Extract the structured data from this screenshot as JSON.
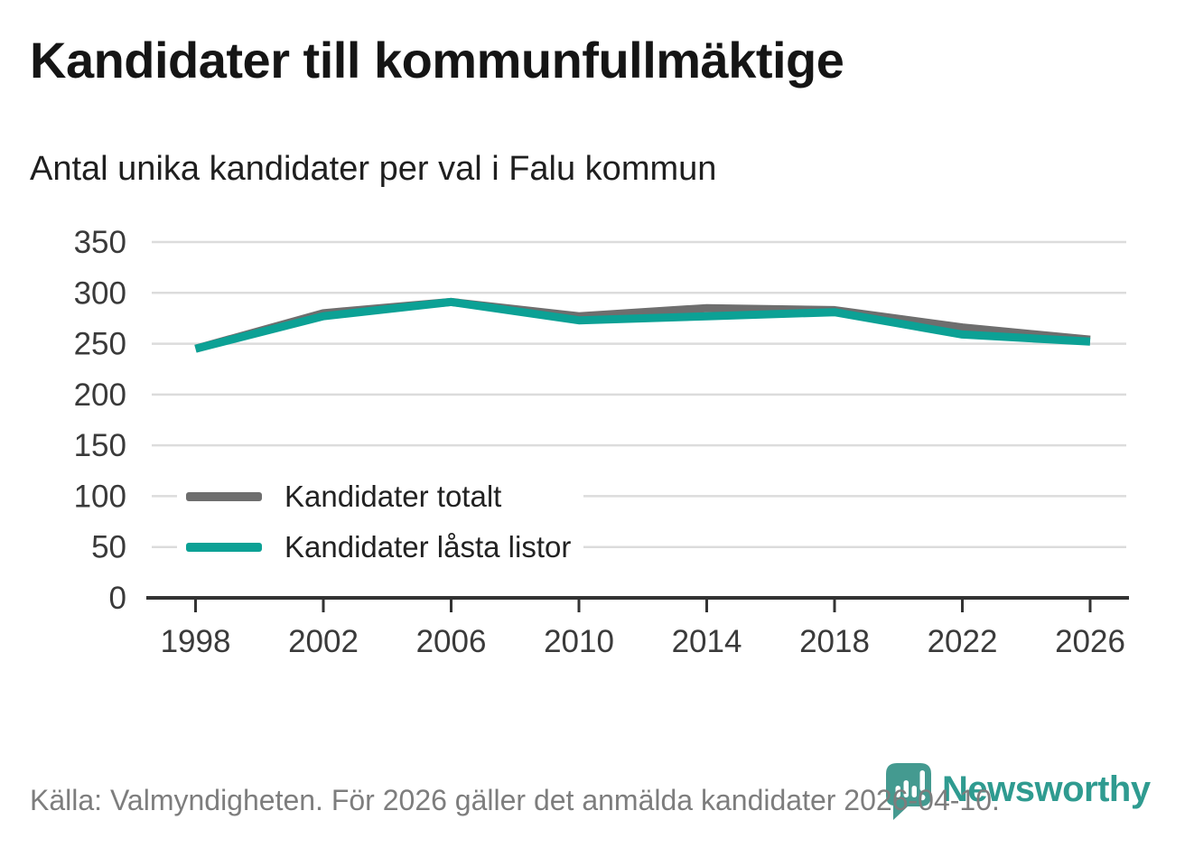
{
  "title": "Kandidater till kommunfullmäktige",
  "subtitle": "Antal unika kandidater per val i Falu kommun",
  "footer": {
    "source_text": "Källa: Valmyndigheten. För 2026 gäller det anmälda kandidater 2026-04-10."
  },
  "branding": {
    "logo_text": "Newsworthy",
    "logo_icon": "newsworthy-pin-barchart-icon",
    "brand_color": "#2f9b90"
  },
  "colors": {
    "series_total": "#6e6e6e",
    "series_locked": "#0ca195",
    "gridline": "#dcdcdc",
    "axis": "#333333",
    "tick_label": "#3a3a3a",
    "title_text": "#151515",
    "footer_text": "#7d7d7d"
  },
  "chart_data": {
    "type": "line",
    "title": "Kandidater till kommunfullmäktige",
    "subtitle": "Antal unika kandidater per val i Falu kommun",
    "x": [
      1998,
      2002,
      2006,
      2010,
      2014,
      2018,
      2022,
      2026
    ],
    "xlabel": "",
    "ylabel": "",
    "series": [
      {
        "name": "Kandidater totalt",
        "color": "#6e6e6e",
        "values": [
          245,
          280,
          291,
          277,
          285,
          283,
          266,
          254
        ]
      },
      {
        "name": "Kandidater låsta listor",
        "color": "#0ca195",
        "values": [
          245,
          277,
          291,
          273,
          277,
          281,
          259,
          252
        ]
      }
    ],
    "ylim": [
      0,
      350
    ],
    "yticks": [
      0,
      50,
      100,
      150,
      200,
      250,
      300,
      350
    ],
    "grid": "horizontal",
    "legend_position": "inside-left-middle"
  }
}
